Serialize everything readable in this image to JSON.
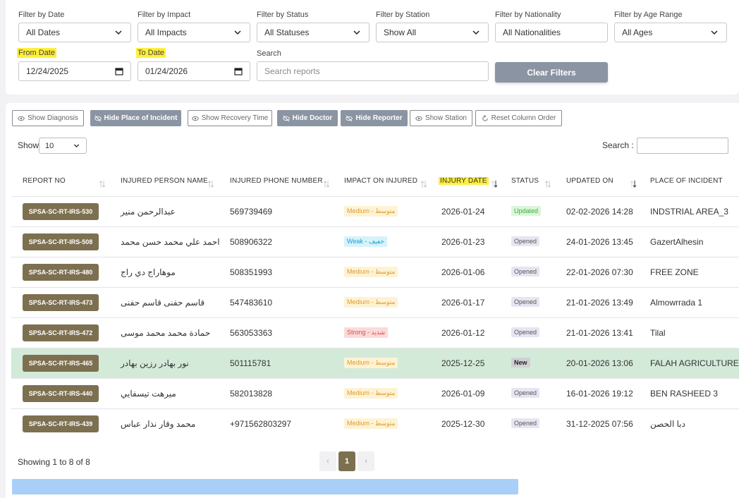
{
  "filters": {
    "date": {
      "label": "Filter by Date",
      "value": "All Dates"
    },
    "impact": {
      "label": "Filter by Impact",
      "value": "All Impacts"
    },
    "status": {
      "label": "Filter by Status",
      "value": "All Statuses"
    },
    "station": {
      "label": "Filter by Station",
      "value": "Show All"
    },
    "nationality": {
      "label": "Filter by Nationality",
      "value": "All Nationalities"
    },
    "age": {
      "label": "Filter by Age Range",
      "value": "All Ages"
    },
    "from_date": {
      "label": "From Date",
      "value": "12/24/2025"
    },
    "to_date": {
      "label": "To Date",
      "value": "01/24/2026"
    },
    "search": {
      "label": "Search",
      "placeholder": "Search reports"
    },
    "clear_label": "Clear Filters"
  },
  "column_toggles": [
    {
      "label": "Show Diagnosis",
      "active": false
    },
    {
      "label": "Hide Place of Incident",
      "active": true
    },
    {
      "label": "Show Recovery Time",
      "active": false
    },
    {
      "label": "Hide Doctor",
      "active": true
    },
    {
      "label": "Hide Reporter",
      "active": true
    },
    {
      "label": "Show Station",
      "active": false
    },
    {
      "label": "Reset Column Order",
      "active": false
    }
  ],
  "table_controls": {
    "show_label": "Show",
    "page_size": "10",
    "search_label": "Search :"
  },
  "columns": [
    "REPORT NO",
    "INJURED PERSON NAME",
    "INJURED PHONE NUMBER",
    "IMPACT ON INJURED",
    "INJURY DATE",
    "STATUS",
    "UPDATED ON",
    "PLACE OF INCIDENT"
  ],
  "rows": [
    {
      "report": "SPSA-SC-RT-IRS-530",
      "name": "عبدالرحمن منير",
      "phone": "569739469",
      "impact": "Medium - متوسط",
      "impact_level": "medium",
      "date": "2026-01-24",
      "status": "Updated",
      "status_type": "updated",
      "updated": "02-02-2026 14:28",
      "place": "INDSTRIAL AREA_3"
    },
    {
      "report": "SPSA-SC-RT-IRS-508",
      "name": "احمد علي محمد حسن محمد",
      "phone": "508906322",
      "impact": "Weak - خفيف",
      "impact_level": "weak",
      "date": "2026-01-23",
      "status": "Opened",
      "status_type": "opened",
      "updated": "24-01-2026 13:45",
      "place": "GazertAlhesin"
    },
    {
      "report": "SPSA-SC-RT-IRS-480",
      "name": "موهاراج دي راج",
      "phone": "508351993",
      "impact": "Medium - متوسط",
      "impact_level": "medium",
      "date": "2026-01-06",
      "status": "Opened",
      "status_type": "opened",
      "updated": "22-01-2026 07:30",
      "place": "FREE ZONE"
    },
    {
      "report": "SPSA-SC-RT-IRS-473",
      "name": "قاسم حفنى قاسم حفنى",
      "phone": "547483610",
      "impact": "Medium - متوسط",
      "impact_level": "medium",
      "date": "2026-01-17",
      "status": "Opened",
      "status_type": "opened",
      "updated": "21-01-2026 13:49",
      "place": "Almowrrada 1"
    },
    {
      "report": "SPSA-SC-RT-IRS-472",
      "name": "حمادة محمد محمد موسى",
      "phone": "563053363",
      "impact": "Strong - شديد",
      "impact_level": "strong",
      "date": "2026-01-12",
      "status": "Opened",
      "status_type": "opened",
      "updated": "21-01-2026 13:41",
      "place": "Tilal"
    },
    {
      "report": "SPSA-SC-RT-IRS-465",
      "name": "نور بهادر رزين بهادر",
      "phone": "501115781",
      "impact": "Medium - متوسط",
      "impact_level": "medium",
      "date": "2025-12-25",
      "status": "New",
      "status_type": "new",
      "updated": "20-01-2026 13:06",
      "place": "FALAH AGRICULTURE",
      "highlight": true
    },
    {
      "report": "SPSA-SC-RT-IRS-440",
      "name": "ميرهت تيسفايي",
      "phone": "582013828",
      "impact": "Medium - متوسط",
      "impact_level": "medium",
      "date": "2026-01-09",
      "status": "Opened",
      "status_type": "opened",
      "updated": "16-01-2026 19:12",
      "place": "BEN RASHEED 3"
    },
    {
      "report": "SPSA-SC-RT-IRS-439",
      "name": "محمد وقار نذار عباس",
      "phone": "+971562803297",
      "impact": "Medium - متوسط",
      "impact_level": "medium",
      "date": "2025-12-30",
      "status": "Opened",
      "status_type": "opened",
      "updated": "31-12-2025 07:56",
      "place": "دبا الحصن"
    }
  ],
  "pagination": {
    "info": "Showing 1 to 8 of 8",
    "current": "1",
    "prev": "‹",
    "next": "›"
  }
}
